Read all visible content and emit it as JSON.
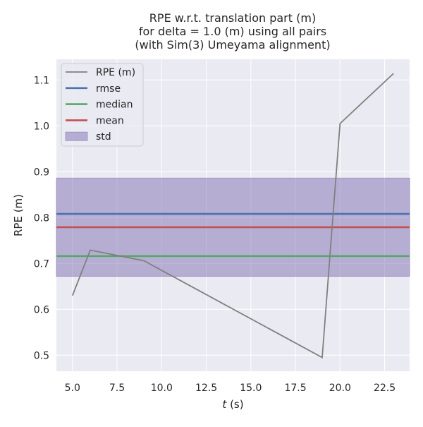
{
  "chart_data": {
    "type": "line",
    "title_lines": [
      "RPE w.r.t. translation part (m)",
      "for delta = 1.0 (m) using all pairs",
      "(with Sim(3) Umeyama alignment)"
    ],
    "xlabel_italic": "t",
    "xlabel_rest": " (s)",
    "ylabel": "RPE (m)",
    "xlim": [
      4.1,
      23.9
    ],
    "ylim": [
      0.465,
      1.145
    ],
    "xticks": [
      5.0,
      7.5,
      10.0,
      12.5,
      15.0,
      17.5,
      20.0,
      22.5
    ],
    "xtick_labels": [
      "5.0",
      "7.5",
      "10.0",
      "12.5",
      "15.0",
      "17.5",
      "20.0",
      "22.5"
    ],
    "yticks": [
      0.5,
      0.6,
      0.7,
      0.8,
      0.9,
      1.0,
      1.1
    ],
    "ytick_labels": [
      "0.5",
      "0.6",
      "0.7",
      "0.8",
      "0.9",
      "1.0",
      "1.1"
    ],
    "grid": true,
    "legend_position": "top-left",
    "series": [
      {
        "name": "RPE (m)",
        "color": "#808080",
        "x": [
          5,
          6,
          9,
          19,
          20,
          23
        ],
        "y": [
          0.63,
          0.729,
          0.706,
          0.495,
          1.005,
          1.114
        ]
      }
    ],
    "stats": {
      "rmse": {
        "label": "rmse",
        "value": 0.808,
        "color": "#4c72b0"
      },
      "median": {
        "label": "median",
        "value": 0.716,
        "color": "#55a868"
      },
      "mean": {
        "label": "mean",
        "value": 0.779,
        "color": "#c44e52"
      },
      "std": {
        "label": "std",
        "low": 0.672,
        "high": 0.886,
        "color": "#8172b2"
      }
    },
    "legend": [
      "RPE (m)",
      "rmse",
      "median",
      "mean",
      "std"
    ]
  }
}
